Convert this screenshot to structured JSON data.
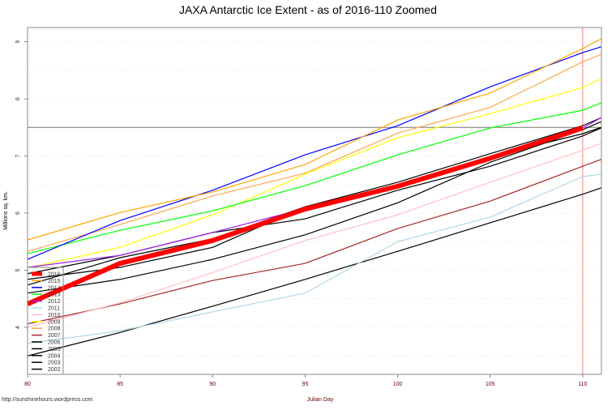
{
  "chart_data": {
    "type": "line",
    "title": "JAXA Antarctic Ice Extent - as of 2016-110 Zoomed",
    "xlabel": "Julian Day",
    "ylabel": "Millions sq. km.",
    "xlim": [
      80,
      111
    ],
    "ylim": [
      3.2,
      9.3
    ],
    "xticks": [
      "80",
      "85",
      "90",
      "95",
      "100",
      "105",
      "110"
    ],
    "yticks": [
      "4",
      "5",
      "6",
      "7",
      "8",
      "9"
    ],
    "reference_lines": {
      "horizontal": 7.5,
      "vertical": 110
    },
    "grid": true,
    "legend": "bottom-left",
    "x": [
      80,
      85,
      90,
      95,
      100,
      105,
      110,
      111
    ],
    "series": [
      {
        "name": "2016",
        "color": "#ff0000",
        "values": [
          4.41,
          5.12,
          5.52,
          6.07,
          6.47,
          6.96,
          7.49,
          null
        ]
      },
      {
        "name": "2015",
        "color": "#ffa500",
        "values": [
          5.53,
          6.01,
          6.37,
          6.85,
          7.63,
          8.1,
          8.88,
          9.05
        ]
      },
      {
        "name": "2014",
        "color": "#0000ff",
        "values": [
          5.19,
          5.87,
          6.4,
          7.02,
          7.53,
          8.21,
          8.81,
          8.91
        ]
      },
      {
        "name": "2013",
        "color": "#00ff00",
        "values": [
          5.29,
          5.7,
          6.04,
          6.48,
          7.02,
          7.49,
          7.8,
          7.93
        ]
      },
      {
        "name": "2012",
        "color": "#a020f0",
        "values": [
          5.05,
          5.26,
          5.66,
          6.08,
          6.48,
          6.95,
          7.49,
          7.67
        ]
      },
      {
        "name": "2011",
        "color": "#add8e6",
        "values": [
          3.72,
          3.94,
          4.27,
          4.6,
          5.5,
          5.93,
          6.64,
          6.68
        ]
      },
      {
        "name": "2010",
        "color": "#ffc0cb",
        "values": [
          4.0,
          4.43,
          4.96,
          5.52,
          5.97,
          6.54,
          7.1,
          7.22
        ]
      },
      {
        "name": "2009",
        "color": "#ffff00",
        "values": [
          5.04,
          5.4,
          5.97,
          6.68,
          7.32,
          7.74,
          8.2,
          8.35
        ]
      },
      {
        "name": "2008",
        "color": "#ffa54f",
        "values": [
          5.33,
          5.8,
          6.3,
          6.7,
          7.4,
          7.85,
          8.65,
          8.78
        ]
      },
      {
        "name": "2007",
        "color": "#a52a2a",
        "values": [
          4.06,
          4.41,
          4.82,
          5.12,
          5.73,
          6.21,
          6.82,
          6.94
        ]
      },
      {
        "name": "2006",
        "color": "#000000",
        "values": [
          4.74,
          5.22,
          5.55,
          6.11,
          6.47,
          6.99,
          7.39,
          7.5
        ]
      },
      {
        "name": "2005",
        "color": "#000000",
        "values": [
          4.94,
          5.26,
          5.66,
          5.9,
          6.4,
          6.82,
          7.35,
          7.49
        ]
      },
      {
        "name": "2004",
        "color": "#000000",
        "values": [
          4.84,
          5.05,
          5.4,
          6.11,
          6.54,
          7.04,
          7.53,
          7.67
        ]
      },
      {
        "name": "2003",
        "color": "#000000",
        "values": [
          4.6,
          4.84,
          5.19,
          5.62,
          6.18,
          6.89,
          7.46,
          7.6
        ]
      },
      {
        "name": "2002",
        "color": "#000000",
        "values": [
          3.5,
          3.91,
          4.37,
          4.84,
          5.33,
          5.83,
          6.33,
          6.44
        ]
      }
    ]
  },
  "footer": {
    "source": "http://sunshinehours.wordpress.com"
  }
}
